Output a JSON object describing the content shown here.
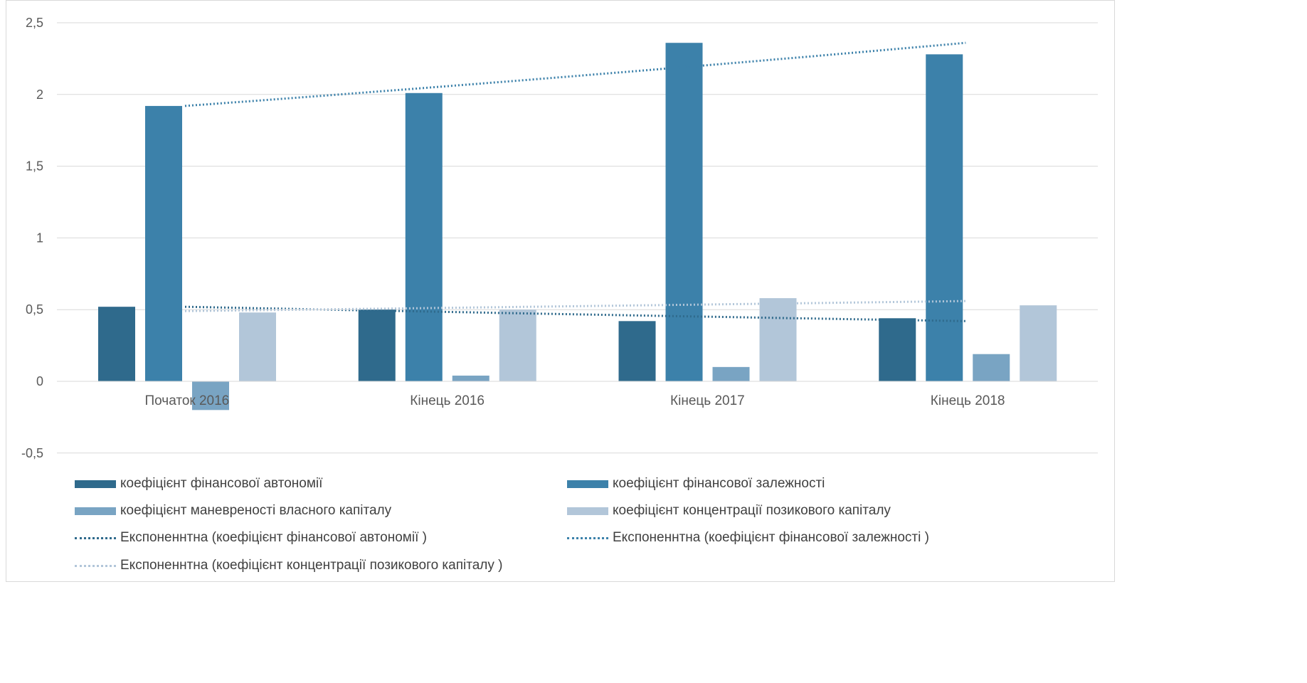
{
  "chart_data": {
    "type": "bar",
    "title": "",
    "xlabel": "",
    "ylabel": "",
    "categories": [
      "Початок 2016",
      "Кінець 2016",
      "Кінець 2017",
      "Кінець 2018"
    ],
    "ylim": [
      -0.5,
      2.5
    ],
    "yticks": [
      -0.5,
      0,
      0.5,
      1,
      1.5,
      2,
      2.5
    ],
    "ytick_labels": [
      "-0,5",
      "0",
      "0,5",
      "1",
      "1,5",
      "2",
      "2,5"
    ],
    "grid": true,
    "legend_position": "bottom",
    "series": [
      {
        "name": "коефіцієнт фінансової автономії",
        "values": [
          0.52,
          0.5,
          0.42,
          0.44
        ],
        "color": "#2f6a8c"
      },
      {
        "name": "коефіцієнт фінансової залежності",
        "values": [
          1.92,
          2.01,
          2.36,
          2.28
        ],
        "color": "#3c81aa"
      },
      {
        "name": "коефіцієнт маневреності власного капіталу",
        "values": [
          -0.2,
          0.04,
          0.1,
          0.19
        ],
        "color": "#79a4c3"
      },
      {
        "name": "коефіцієнт концентрації позикового капіталу",
        "values": [
          0.48,
          0.5,
          0.58,
          0.53
        ],
        "color": "#b2c6d9"
      }
    ],
    "trendlines": [
      {
        "name": "Експоненнтна (коефіцієнт фінансової автономії )",
        "type": "exponential",
        "start": 0.52,
        "end": 0.42,
        "color": "#2f6a8c"
      },
      {
        "name": "Експоненнтна (коефіцієнт фінансової залежності )",
        "type": "exponential",
        "start": 1.92,
        "end": 2.36,
        "color": "#3c81aa"
      },
      {
        "name": "Експоненнтна (коефіцієнт концентрації позикового капіталу )",
        "type": "exponential",
        "start": 0.49,
        "end": 0.56,
        "color": "#b2c6d9"
      }
    ]
  },
  "legend": [
    {
      "label": "коефіцієнт фінансової автономії",
      "kind": "bar",
      "color": "#2f6a8c"
    },
    {
      "label": "коефіцієнт фінансової залежності",
      "kind": "bar",
      "color": "#3c81aa"
    },
    {
      "label": "коефіцієнт маневреності власного капіталу",
      "kind": "bar",
      "color": "#79a4c3"
    },
    {
      "label": "коефіцієнт концентрації позикового капіталу",
      "kind": "bar",
      "color": "#b2c6d9"
    },
    {
      "label": "Експоненнтна (коефіцієнт фінансової автономії )",
      "kind": "line",
      "color": "#2f6a8c"
    },
    {
      "label": "Експоненнтна (коефіцієнт фінансової залежності )",
      "kind": "line",
      "color": "#3c81aa"
    },
    {
      "label": "Експоненнтна (коефіцієнт концентрації позикового капіталу )",
      "kind": "line",
      "color": "#b2c6d9"
    }
  ]
}
